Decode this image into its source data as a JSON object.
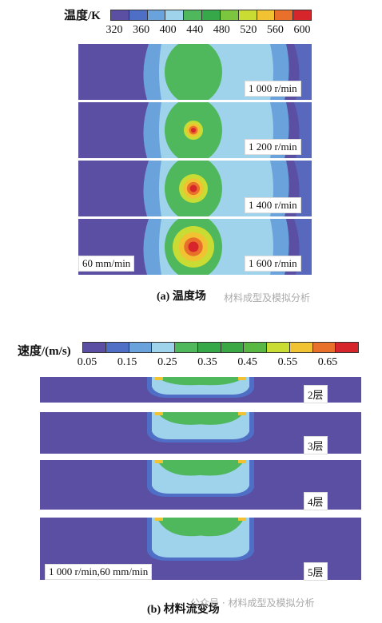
{
  "temperature": {
    "legend_title": "温度/K",
    "ticks": [
      "320",
      "360",
      "400",
      "440",
      "480",
      "520",
      "560",
      "600"
    ],
    "colors": [
      "#5b4fa3",
      "#4f6fc6",
      "#6aa3dc",
      "#9fd3ec",
      "#4fb85d",
      "#36a84a",
      "#7cc53f",
      "#c8dc33",
      "#f1c232",
      "#e8702a",
      "#d7262b"
    ],
    "panels": [
      {
        "speed": "1 000 r/min"
      },
      {
        "speed": "1 200 r/min"
      },
      {
        "speed": "1 400 r/min"
      },
      {
        "speed": "1 600 r/min"
      }
    ],
    "feed_label": "60 mm/min",
    "caption": "(a) 温度场",
    "watermark": "材料成型及模拟分析"
  },
  "velocity": {
    "legend_title": "速度/(m/s)",
    "ticks": [
      "0.05",
      "0.15",
      "0.25",
      "0.35",
      "0.45",
      "0.55",
      "0.65"
    ],
    "colors": [
      "#5b4fa3",
      "#4f6fc6",
      "#6aa3dc",
      "#9fd3ec",
      "#4fb85d",
      "#36a84a",
      "#3aa845",
      "#59b844",
      "#c8dc33",
      "#f1c232",
      "#e8702a",
      "#d7262b"
    ],
    "panels": [
      {
        "layer": "2层"
      },
      {
        "layer": "3层"
      },
      {
        "layer": "4层"
      },
      {
        "layer": "5层"
      }
    ],
    "param_label": "1 000 r/min,60 mm/min",
    "caption": "(b) 材料流变场",
    "watermark": "公众号 · 材料成型及模拟分析"
  }
}
